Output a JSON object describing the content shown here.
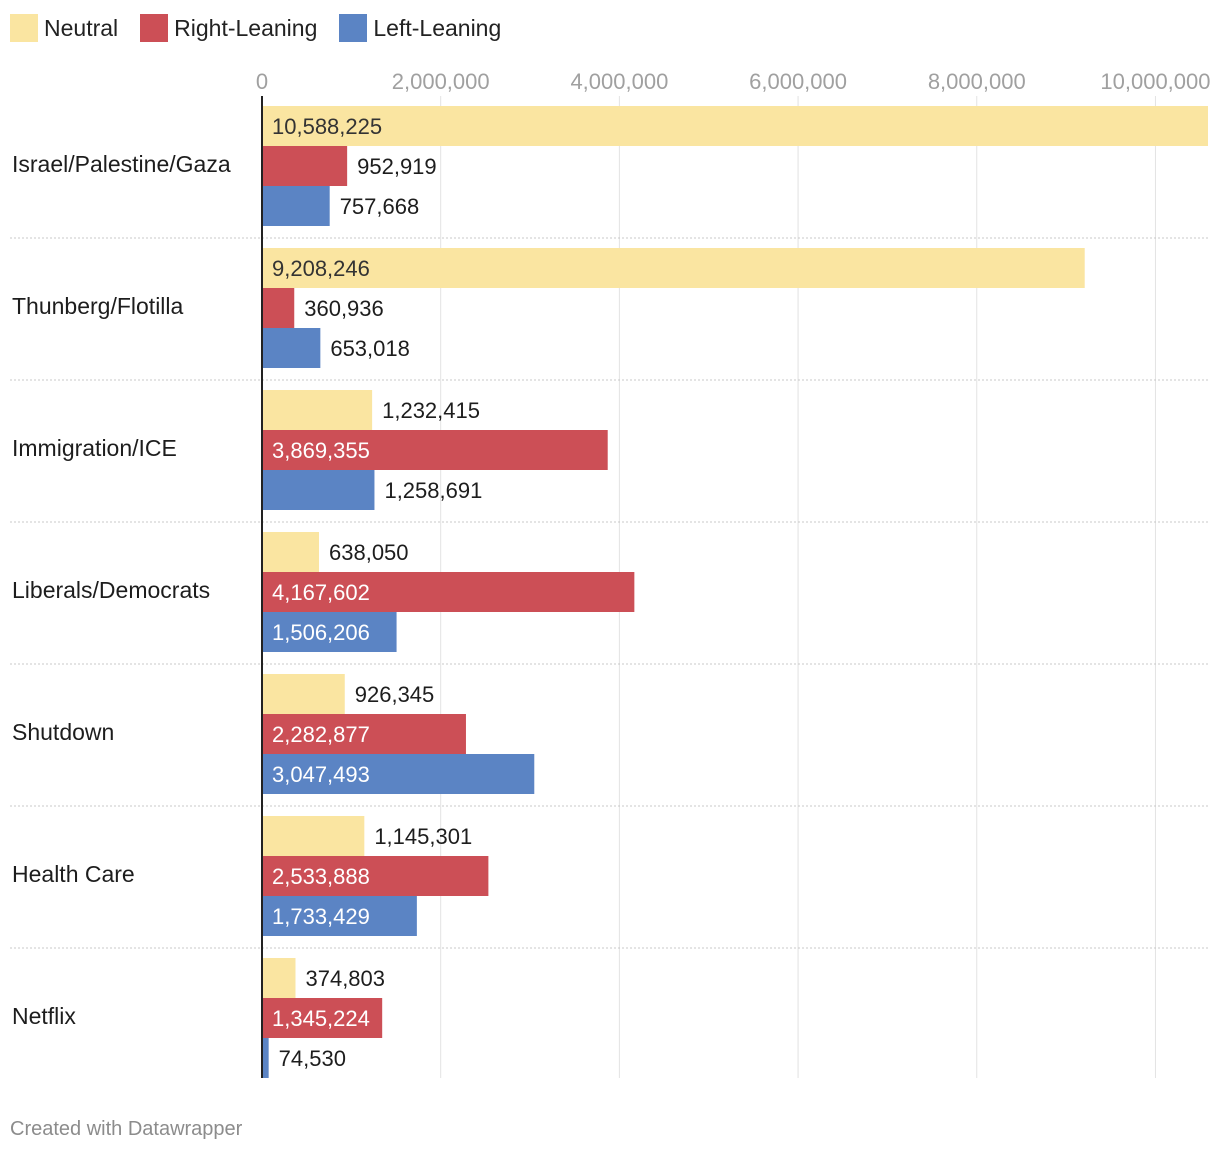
{
  "chart_data": {
    "type": "bar",
    "orientation": "horizontal",
    "categories": [
      "Israel/Palestine/Gaza",
      "Thunberg/Flotilla",
      "Immigration/ICE",
      "Liberals/Democrats",
      "Shutdown",
      "Health Care",
      "Netflix"
    ],
    "series": [
      {
        "name": "Neutral",
        "color": "#fae5a1",
        "values": [
          10588225,
          9208246,
          1232415,
          638050,
          926345,
          1145301,
          374803
        ]
      },
      {
        "name": "Right-Leaning",
        "color": "#cc4f56",
        "values": [
          952919,
          360936,
          3869355,
          4167602,
          2282877,
          2533888,
          1345224
        ]
      },
      {
        "name": "Left-Leaning",
        "color": "#5b84c4",
        "values": [
          757668,
          653018,
          1258691,
          1506206,
          3047493,
          1733429,
          74530
        ]
      }
    ],
    "x_ticks": [
      0,
      2000000,
      4000000,
      6000000,
      8000000,
      10000000
    ],
    "x_tick_labels": [
      "0",
      "2,000,000",
      "4,000,000",
      "6,000,000",
      "8,000,000",
      "10,000,000"
    ],
    "xlim": [
      0,
      10588225
    ],
    "legend_position": "top-left",
    "grid": true
  },
  "credit": "Created with Datawrapper"
}
